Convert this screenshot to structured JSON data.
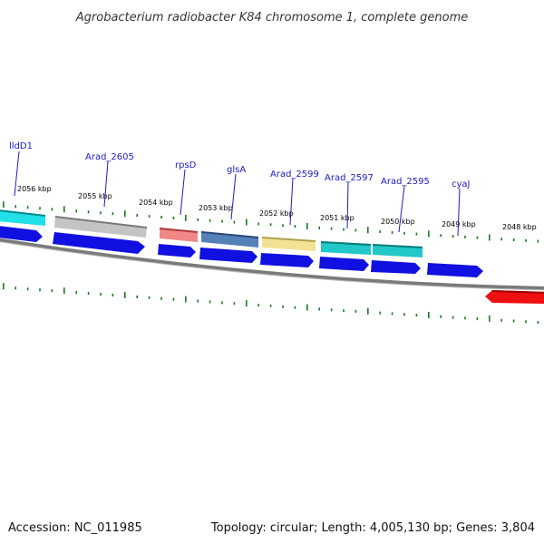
{
  "title": "Agrobacterium radiobacter K84 chromosome 1, complete genome",
  "footer": {
    "accession": "Accession: NC_011985",
    "summary": "Topology: circular; Length: 4,005,130 bp; Genes: 3,804"
  },
  "scale_labels": [
    "2056 kbp",
    "2055 kbp",
    "2054 kbp",
    "2053 kbp",
    "2052 kbp",
    "2051 kbp",
    "2050 kbp",
    "2049 kbp",
    "2048 kbp"
  ],
  "genes": [
    {
      "name": "lldD1",
      "color": "#22e0e8"
    },
    {
      "name": "Arad_2605",
      "color": "#b8b8b8"
    },
    {
      "name": "rpsD",
      "color": "#e88080"
    },
    {
      "name": "glsA",
      "color": "#4a7ab0"
    },
    {
      "name": "Arad_2599",
      "color": "#f0e090"
    },
    {
      "name": "Arad_2597",
      "color": "#20c8c8"
    },
    {
      "name": "Arad_2595",
      "color": "#20c8c8"
    },
    {
      "name": "cyaJ",
      "color": ""
    }
  ],
  "colors": {
    "cds_forward": "#1010e0",
    "cds_reverse": "#ee1010",
    "tick": "#1a7a1a",
    "backbone": "#808080"
  }
}
